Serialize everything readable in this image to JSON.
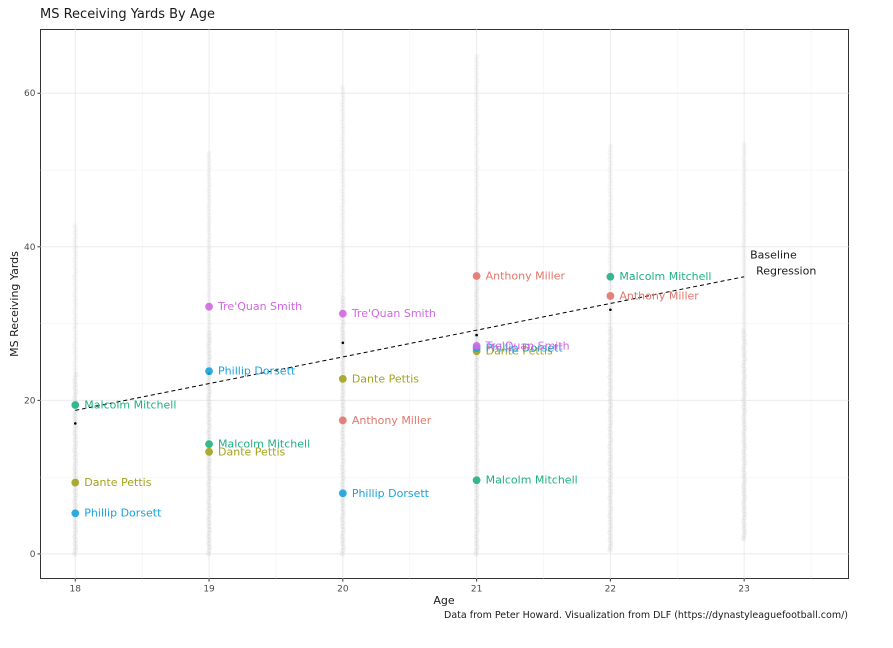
{
  "chart_data": {
    "type": "scatter",
    "title": "MS Receiving Yards By Age",
    "xlabel": "Age",
    "ylabel": "MS Receiving Yards",
    "caption": "Data from Peter Howard. Visualization from DLF (https://dynastyleaguefootball.com/)",
    "xlim": [
      17.74,
      23.78
    ],
    "ylim": [
      -3.2,
      68.3
    ],
    "x_ticks": [
      18,
      19,
      20,
      21,
      22,
      23
    ],
    "y_ticks": [
      0,
      20,
      40,
      60
    ],
    "grid": true,
    "background_points_color": "#c8c8c8",
    "background_ranges": [
      {
        "age": 18,
        "min": 0,
        "max": 43
      },
      {
        "age": 19,
        "min": 0,
        "max": 52.5
      },
      {
        "age": 20,
        "min": 0,
        "max": 61
      },
      {
        "age": 21,
        "min": 0,
        "max": 65
      },
      {
        "age": 22,
        "min": 0.5,
        "max": 53.5
      },
      {
        "age": 23,
        "min": 2,
        "max": 53.5
      }
    ],
    "age_means": [
      {
        "age": 18,
        "value": 17
      },
      {
        "age": 19,
        "value": 23.5
      },
      {
        "age": 20,
        "value": 27.5
      },
      {
        "age": 21,
        "value": 28.5
      },
      {
        "age": 22,
        "value": 31.8
      }
    ],
    "regression": {
      "name": "Baseline Regression",
      "label_lines": [
        "Baseline",
        "Regression"
      ],
      "x": [
        18,
        23
      ],
      "y": [
        18.7,
        36.1
      ],
      "style": "dashed"
    },
    "series": [
      {
        "name": "Anthony Miller",
        "color": "#e2766d",
        "points": [
          {
            "x": 20,
            "y": 17.4
          },
          {
            "x": 21,
            "y": 36.2
          },
          {
            "x": 22,
            "y": 33.6
          }
        ]
      },
      {
        "name": "Dante Pettis",
        "color": "#a3a31f",
        "points": [
          {
            "x": 18,
            "y": 9.3
          },
          {
            "x": 19,
            "y": 13.3
          },
          {
            "x": 20,
            "y": 22.8
          },
          {
            "x": 21,
            "y": 26.4
          }
        ]
      },
      {
        "name": "Malcolm Mitchell",
        "color": "#1fb185",
        "points": [
          {
            "x": 18,
            "y": 19.4
          },
          {
            "x": 19,
            "y": 14.3
          },
          {
            "x": 21,
            "y": 9.6
          },
          {
            "x": 22,
            "y": 36.1
          }
        ]
      },
      {
        "name": "Phillip Dorsett",
        "color": "#1aa2dc",
        "points": [
          {
            "x": 18,
            "y": 5.3
          },
          {
            "x": 19,
            "y": 23.8
          },
          {
            "x": 20,
            "y": 7.9
          },
          {
            "x": 21,
            "y": 26.8
          }
        ]
      },
      {
        "name": "Tre'Quan Smith",
        "color": "#d067e1",
        "points": [
          {
            "x": 19,
            "y": 32.2
          },
          {
            "x": 20,
            "y": 31.3
          },
          {
            "x": 21,
            "y": 27.1
          }
        ]
      }
    ]
  }
}
